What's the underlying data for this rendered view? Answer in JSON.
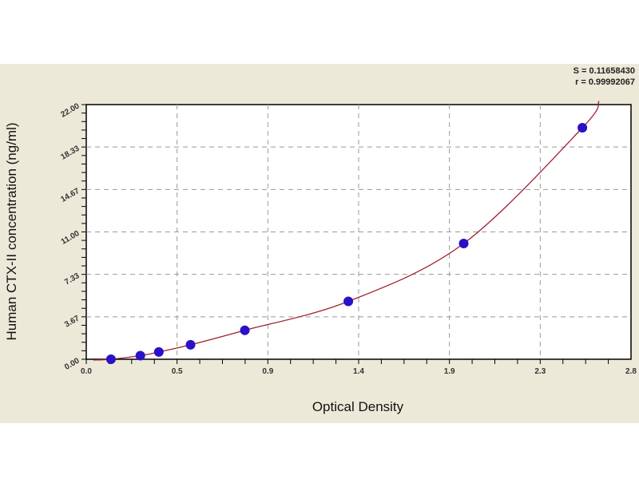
{
  "chart_data": {
    "type": "scatter",
    "xlabel": "Optical Density",
    "ylabel": "Human CTX-II concentration (ng/ml)",
    "xlim": [
      0,
      2.8
    ],
    "ylim": [
      0,
      22
    ],
    "x_ticks": [
      "0.0",
      "0.5",
      "0.9",
      "1.4",
      "1.9",
      "2.3",
      "2.8"
    ],
    "y_ticks": [
      "0.00",
      "3.67",
      "7.33",
      "11.00",
      "14.67",
      "18.33",
      "22.00"
    ],
    "grid": true,
    "stats": [
      "S = 0.11658430",
      "r = 0.99992067"
    ],
    "series": [
      {
        "x": [
          0.127,
          0.278,
          0.373,
          0.536,
          0.815,
          1.347,
          1.94,
          2.55
        ],
        "y": [
          0,
          0.31,
          0.63,
          1.25,
          2.5,
          5,
          10,
          20
        ],
        "marker_color": "#2A10C8",
        "line_color": "#A02030"
      }
    ]
  }
}
